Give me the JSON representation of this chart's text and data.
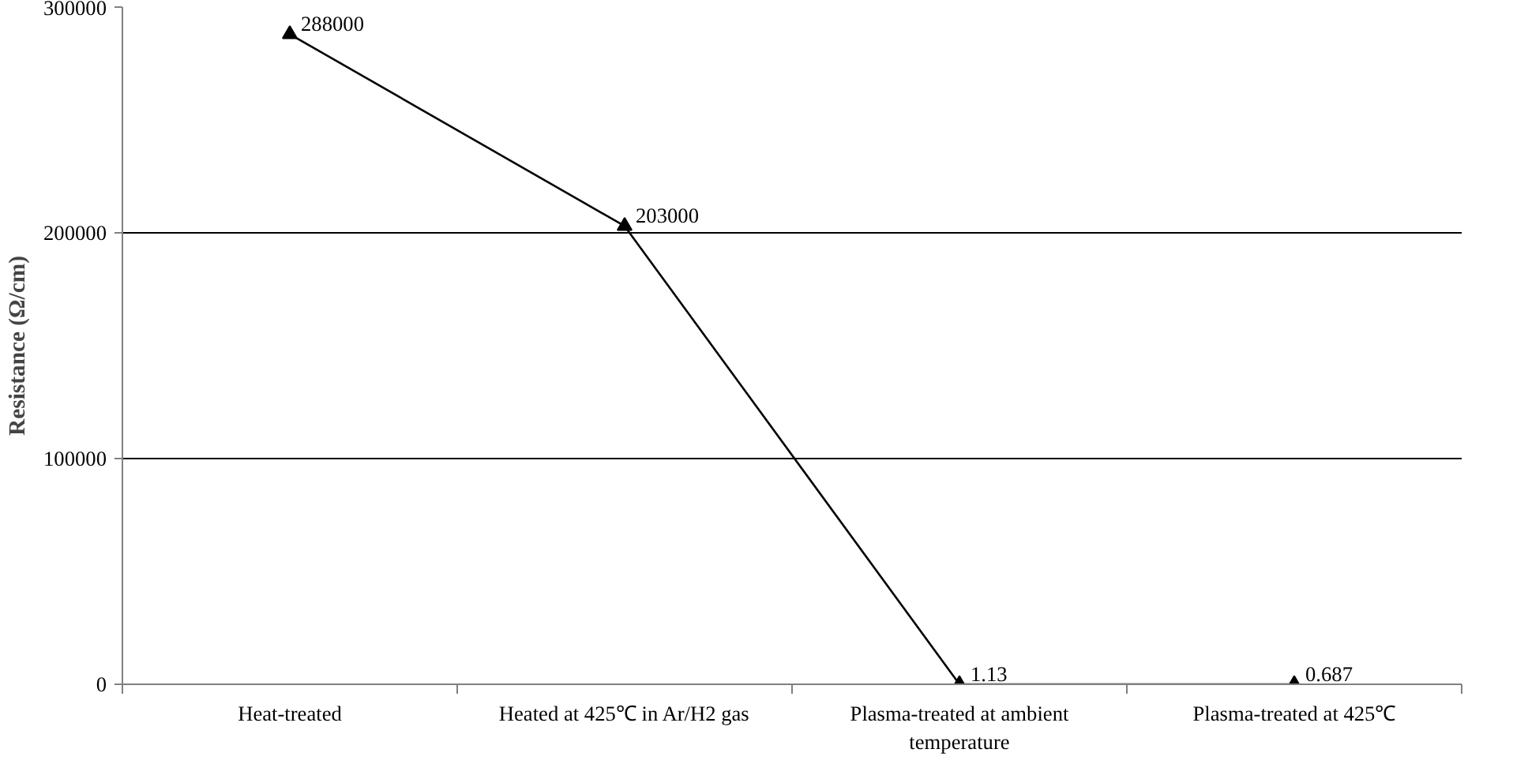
{
  "chart_data": {
    "type": "line",
    "ylabel": "Resistance (Ω/cm)",
    "categories": [
      "Heat-treated",
      "Heated at 425℃ in Ar/H2 gas",
      "Plasma-treated at ambient temperature",
      "Plasma-treated at 425℃"
    ],
    "series": [
      {
        "color": "#000000",
        "values": [
          288000,
          203000,
          1.13,
          0.687
        ]
      }
    ],
    "ylim": [
      0,
      300000
    ],
    "yticks": [
      0,
      100000,
      200000,
      300000
    ],
    "grid": "y",
    "marker": "triangle",
    "line_style": "solid",
    "data_labels": true
  }
}
